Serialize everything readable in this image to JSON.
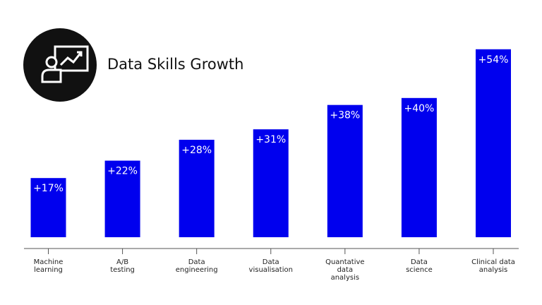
{
  "chart_data": {
    "type": "bar",
    "title": "Data Skills Growth",
    "categories": [
      "Machine\nlearning",
      "A/B\ntesting",
      "Data\nengineering",
      "Data\nvisualisation",
      "Quantative\ndata\nanalysis",
      "Data\nscience",
      "Clinical data\nanalysis"
    ],
    "values": [
      17,
      22,
      28,
      31,
      38,
      40,
      54
    ],
    "value_labels": [
      "+17%",
      "+22%",
      "+28%",
      "+31%",
      "+38%",
      "+40%",
      "+54%"
    ],
    "color": "#0000ee"
  }
}
